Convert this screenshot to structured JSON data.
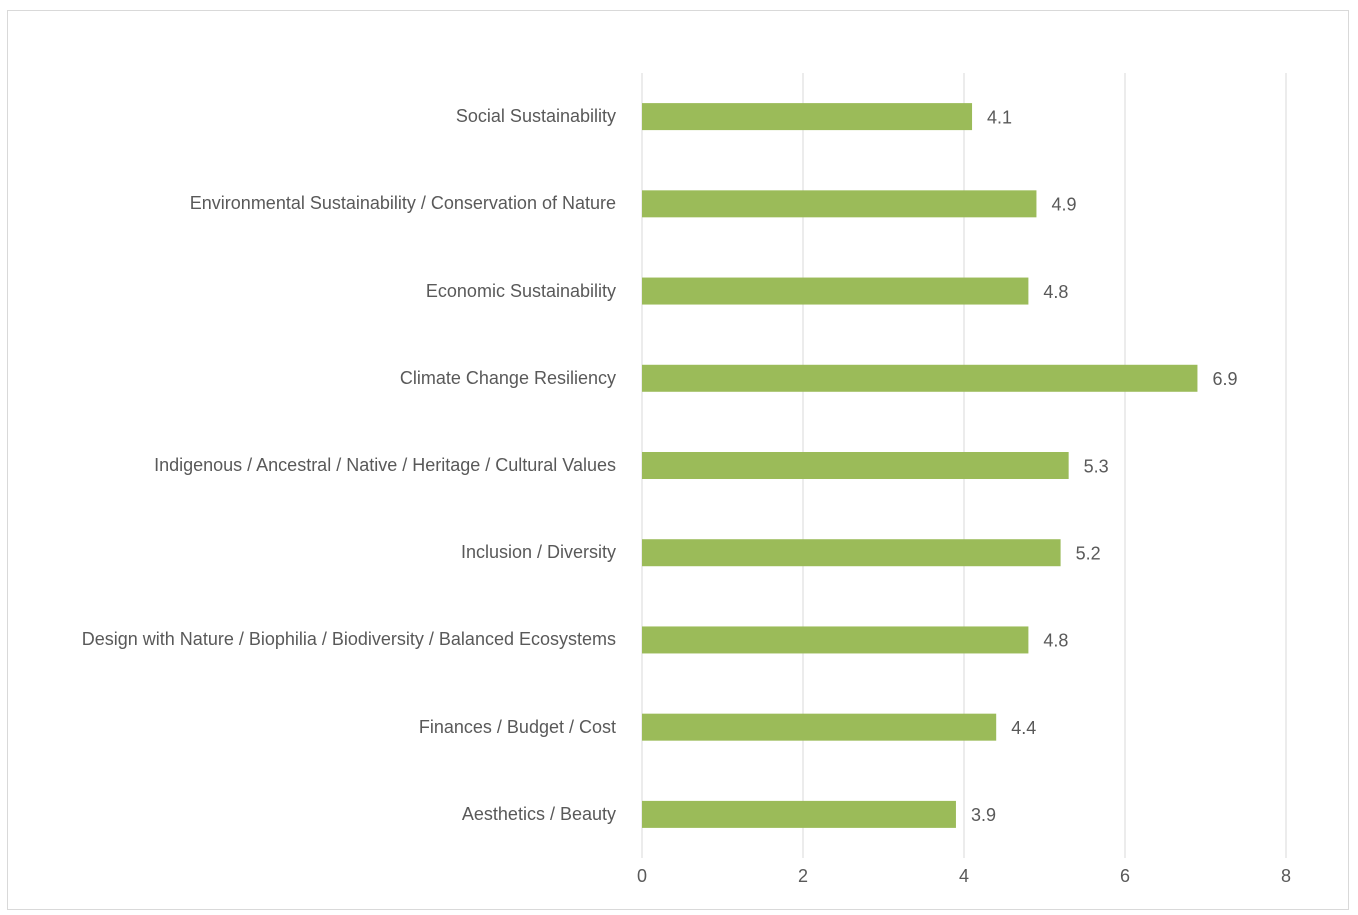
{
  "chart_data": {
    "type": "bar",
    "orientation": "horizontal",
    "categories": [
      "Social Sustainability",
      "Environmental Sustainability / Conservation of Nature",
      "Economic Sustainability",
      "Climate Change Resiliency",
      "Indigenous / Ancestral / Native / Heritage / Cultural Values",
      "Inclusion / Diversity",
      "Design with Nature / Biophilia / Biodiversity / Balanced Ecosystems",
      "Finances / Budget / Cost",
      "Aesthetics / Beauty"
    ],
    "values": [
      4.1,
      4.9,
      4.8,
      6.9,
      5.3,
      5.2,
      4.8,
      4.4,
      3.9
    ],
    "color": "#9bbb59",
    "xlim": [
      0,
      8
    ],
    "xticks": [
      0,
      2,
      4,
      6,
      8
    ],
    "grid": true
  }
}
